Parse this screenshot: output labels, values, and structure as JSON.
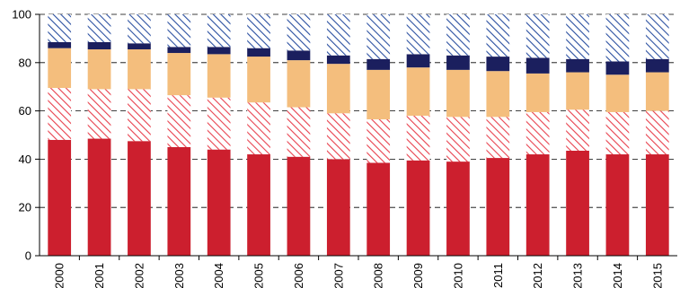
{
  "chart_data": {
    "type": "bar",
    "stacked": true,
    "title": "",
    "xlabel": "",
    "ylabel": "",
    "ylim": [
      0,
      100
    ],
    "yticks": [
      0,
      20,
      40,
      60,
      80,
      100
    ],
    "grid": "horizontal-dashed",
    "categories": [
      "2000",
      "2001",
      "2002",
      "2003",
      "2004",
      "2005",
      "2006",
      "2007",
      "2008",
      "2009",
      "2010",
      "2011",
      "2012",
      "2013",
      "2014",
      "2015"
    ],
    "series": [
      {
        "color": "#cc1f2e",
        "pattern": "solid",
        "values": [
          48,
          48.5,
          47.5,
          45,
          44,
          42,
          41,
          40,
          38.5,
          39.5,
          39,
          40.5,
          42,
          43.5,
          42,
          42
        ]
      },
      {
        "color": "#e8414e",
        "pattern": "diagonal-hatch",
        "values": [
          21.5,
          20.5,
          21.5,
          21.5,
          21.5,
          21.5,
          20.5,
          19,
          18,
          18.5,
          18.5,
          17,
          17.5,
          17,
          17.5,
          18
        ]
      },
      {
        "color": "#f4be7d",
        "pattern": "solid",
        "values": [
          16.5,
          16.5,
          16.5,
          17.5,
          18,
          19,
          19.5,
          20.5,
          20.5,
          20,
          19.5,
          19,
          16,
          15.5,
          15.5,
          16
        ]
      },
      {
        "color": "#1b1f5e",
        "pattern": "solid",
        "values": [
          2.5,
          3,
          2.5,
          2.5,
          3,
          3.5,
          4,
          3.5,
          4.5,
          5.5,
          6,
          6,
          6.5,
          5.5,
          5.5,
          5.5
        ]
      },
      {
        "color": "#2a4fa0",
        "pattern": "diagonal-hatch",
        "values": [
          11.5,
          11.5,
          12,
          13.5,
          13.5,
          14,
          15,
          17,
          18.5,
          16.5,
          17,
          17.5,
          18,
          18.5,
          19.5,
          18.5
        ]
      }
    ]
  }
}
